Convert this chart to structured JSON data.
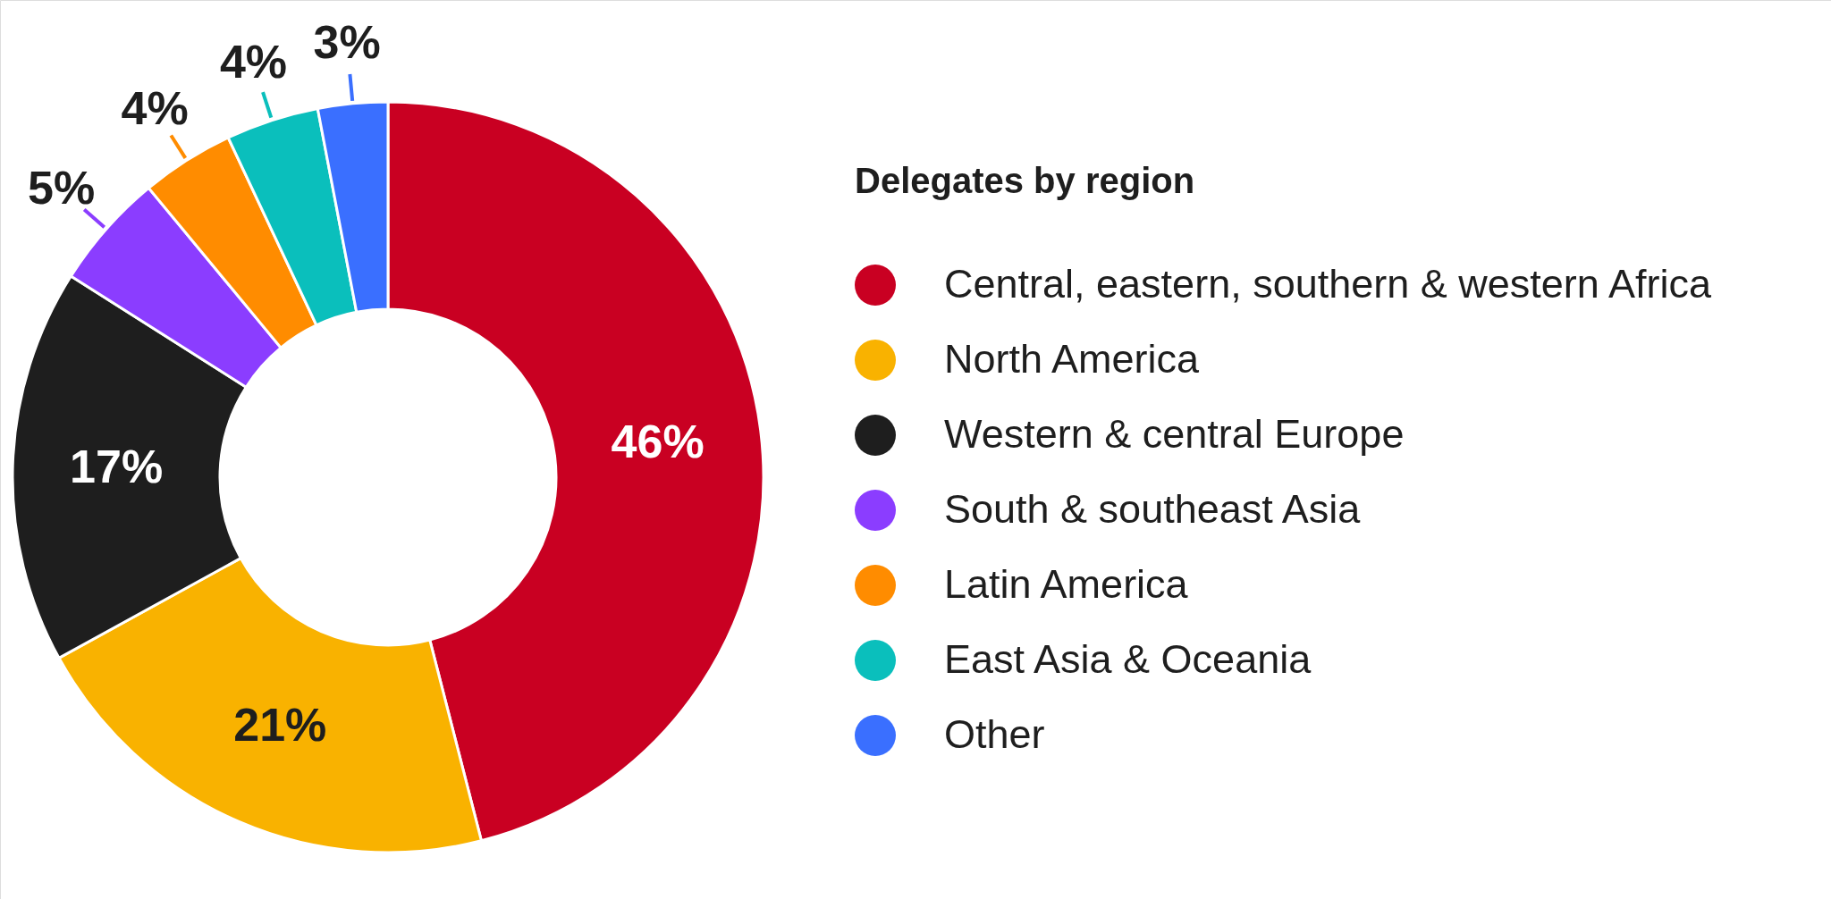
{
  "chart_data": {
    "type": "donut",
    "legend_title": "Delegates by region",
    "categories": [
      "Central, eastern, southern & western Africa",
      "North America",
      "Western & central Europe",
      "South & southeast Asia",
      "Latin America",
      "East Asia & Oceania",
      "Other"
    ],
    "values": [
      46,
      21,
      17,
      5,
      4,
      4,
      3
    ],
    "colors": [
      "#c90022",
      "#f9b200",
      "#1e1e1e",
      "#8b3dff",
      "#ff8c00",
      "#0abfbc",
      "#3a6fff"
    ],
    "value_labels": [
      "46%",
      "21%",
      "17%",
      "5%",
      "4%",
      "4%",
      "3%"
    ],
    "legend": "right"
  }
}
